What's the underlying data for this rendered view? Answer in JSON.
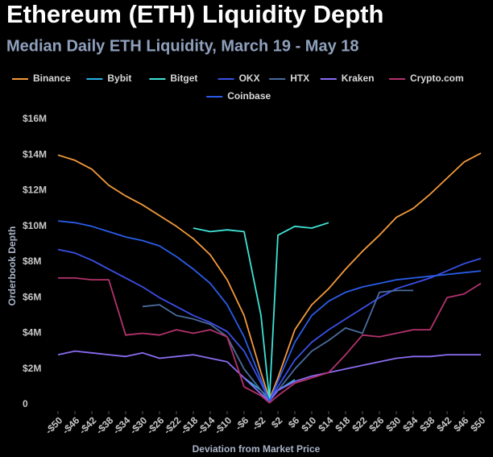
{
  "chart_data": {
    "type": "line",
    "title": "Ethereum (ETH) Liquidity Depth",
    "subtitle": "Median Daily ETH Liquidity, March 19 - May 18",
    "x_label": "Deviation from Market Price",
    "y_label": "Orderbook Depth",
    "x": [
      -50,
      -46,
      -42,
      -38,
      -34,
      -30,
      -26,
      -22,
      -18,
      -14,
      -10,
      -6,
      -2,
      0,
      2,
      6,
      10,
      14,
      18,
      22,
      26,
      30,
      34,
      38,
      42,
      46,
      50
    ],
    "xlim": [
      -50,
      50
    ],
    "xticks": [
      {
        "value": -50,
        "label": "-$50"
      },
      {
        "value": -46,
        "label": "-$46"
      },
      {
        "value": -42,
        "label": "-$42"
      },
      {
        "value": -38,
        "label": "-$38"
      },
      {
        "value": -34,
        "label": "-$34"
      },
      {
        "value": -30,
        "label": "-$30"
      },
      {
        "value": -26,
        "label": "-$26"
      },
      {
        "value": -22,
        "label": "-$22"
      },
      {
        "value": -18,
        "label": "-$18"
      },
      {
        "value": -14,
        "label": "-$14"
      },
      {
        "value": -10,
        "label": "-$10"
      },
      {
        "value": -6,
        "label": "-$6"
      },
      {
        "value": -2,
        "label": "-$2"
      },
      {
        "value": 2,
        "label": "$2"
      },
      {
        "value": 6,
        "label": "$6"
      },
      {
        "value": 10,
        "label": "$10"
      },
      {
        "value": 14,
        "label": "$14"
      },
      {
        "value": 18,
        "label": "$18"
      },
      {
        "value": 22,
        "label": "$22"
      },
      {
        "value": 26,
        "label": "$26"
      },
      {
        "value": 30,
        "label": "$30"
      },
      {
        "value": 34,
        "label": "$34"
      },
      {
        "value": 38,
        "label": "$38"
      },
      {
        "value": 42,
        "label": "$42"
      },
      {
        "value": 46,
        "label": "$46"
      },
      {
        "value": 50,
        "label": "$50"
      }
    ],
    "ylim": [
      0,
      16000000
    ],
    "yticks": [
      0,
      {
        "value": 2000000,
        "label": "$2M"
      },
      {
        "value": 4000000,
        "label": "$4M"
      },
      {
        "value": 6000000,
        "label": "$6M"
      },
      {
        "value": 8000000,
        "label": "$8M"
      },
      {
        "value": 10000000,
        "label": "$10M"
      },
      {
        "value": 12000000,
        "label": "$12M"
      },
      {
        "value": 14000000,
        "label": "$14M"
      },
      {
        "value": 16000000,
        "label": "$16M"
      }
    ],
    "grid": false,
    "legend": "top",
    "series": [
      {
        "name": "Binance",
        "color": "#f39a3c",
        "values": [
          14000000,
          13700000,
          13200000,
          12300000,
          11700000,
          11200000,
          10600000,
          10000000,
          9300000,
          8400000,
          7000000,
          5000000,
          1800000,
          300000,
          1500000,
          4200000,
          5600000,
          6500000,
          7600000,
          8600000,
          9500000,
          10500000,
          11000000,
          11800000,
          12700000,
          13600000,
          14100000
        ]
      },
      {
        "name": "Bybit",
        "color": "#2ab0e6",
        "values": [
          null,
          null,
          null,
          null,
          null,
          null,
          null,
          null,
          null,
          null,
          null,
          1500000,
          800000,
          300000,
          800000,
          1400000,
          null,
          null,
          null,
          null,
          null,
          null,
          null,
          null,
          null,
          null,
          null
        ]
      },
      {
        "name": "Bitget",
        "color": "#3fe3d6",
        "values": [
          null,
          null,
          null,
          null,
          null,
          null,
          null,
          null,
          9900000,
          9700000,
          9800000,
          9700000,
          5000000,
          300000,
          9500000,
          10000000,
          9900000,
          10200000,
          null,
          null,
          null,
          null,
          null,
          null,
          null,
          null,
          null
        ]
      },
      {
        "name": "OKX",
        "color": "#3b4fe6",
        "values": [
          8700000,
          8500000,
          8100000,
          7600000,
          7100000,
          6600000,
          6000000,
          5500000,
          5000000,
          4600000,
          4100000,
          3000000,
          1200000,
          200000,
          1000000,
          2500000,
          3500000,
          4200000,
          4800000,
          5400000,
          6000000,
          6500000,
          6800000,
          7100000,
          7500000,
          7900000,
          8200000
        ]
      },
      {
        "name": "HTX",
        "color": "#4a6c9e",
        "values": [
          null,
          null,
          null,
          null,
          null,
          5500000,
          5600000,
          5000000,
          4800000,
          4500000,
          3800000,
          2000000,
          800000,
          200000,
          800000,
          2000000,
          3000000,
          3600000,
          4300000,
          4000000,
          6300000,
          6400000,
          6400000,
          null,
          null,
          null,
          null
        ]
      },
      {
        "name": "Kraken",
        "color": "#8a6cf2",
        "values": [
          2800000,
          3000000,
          2900000,
          2800000,
          2700000,
          2900000,
          2600000,
          2700000,
          2800000,
          2600000,
          2400000,
          1500000,
          600000,
          200000,
          800000,
          1300000,
          1600000,
          1800000,
          2000000,
          2200000,
          2400000,
          2600000,
          2700000,
          2700000,
          2800000,
          2800000,
          2800000
        ]
      },
      {
        "name": "Crypto.com",
        "color": "#b3326c",
        "values": [
          7100000,
          7100000,
          7000000,
          7000000,
          3900000,
          4000000,
          3900000,
          4200000,
          4000000,
          4200000,
          3800000,
          1000000,
          500000,
          100000,
          500000,
          1200000,
          1500000,
          1800000,
          2800000,
          3900000,
          3800000,
          4000000,
          4200000,
          4200000,
          6000000,
          6200000,
          6800000
        ]
      },
      {
        "name": "Coinbase",
        "color": "#2a5ce8",
        "values": [
          10300000,
          10200000,
          10000000,
          9700000,
          9400000,
          9200000,
          8900000,
          8300000,
          7600000,
          6800000,
          5600000,
          3800000,
          1400000,
          200000,
          1300000,
          3500000,
          5000000,
          5800000,
          6300000,
          6600000,
          6800000,
          7000000,
          7100000,
          7200000,
          7300000,
          7400000,
          7500000
        ]
      }
    ]
  }
}
